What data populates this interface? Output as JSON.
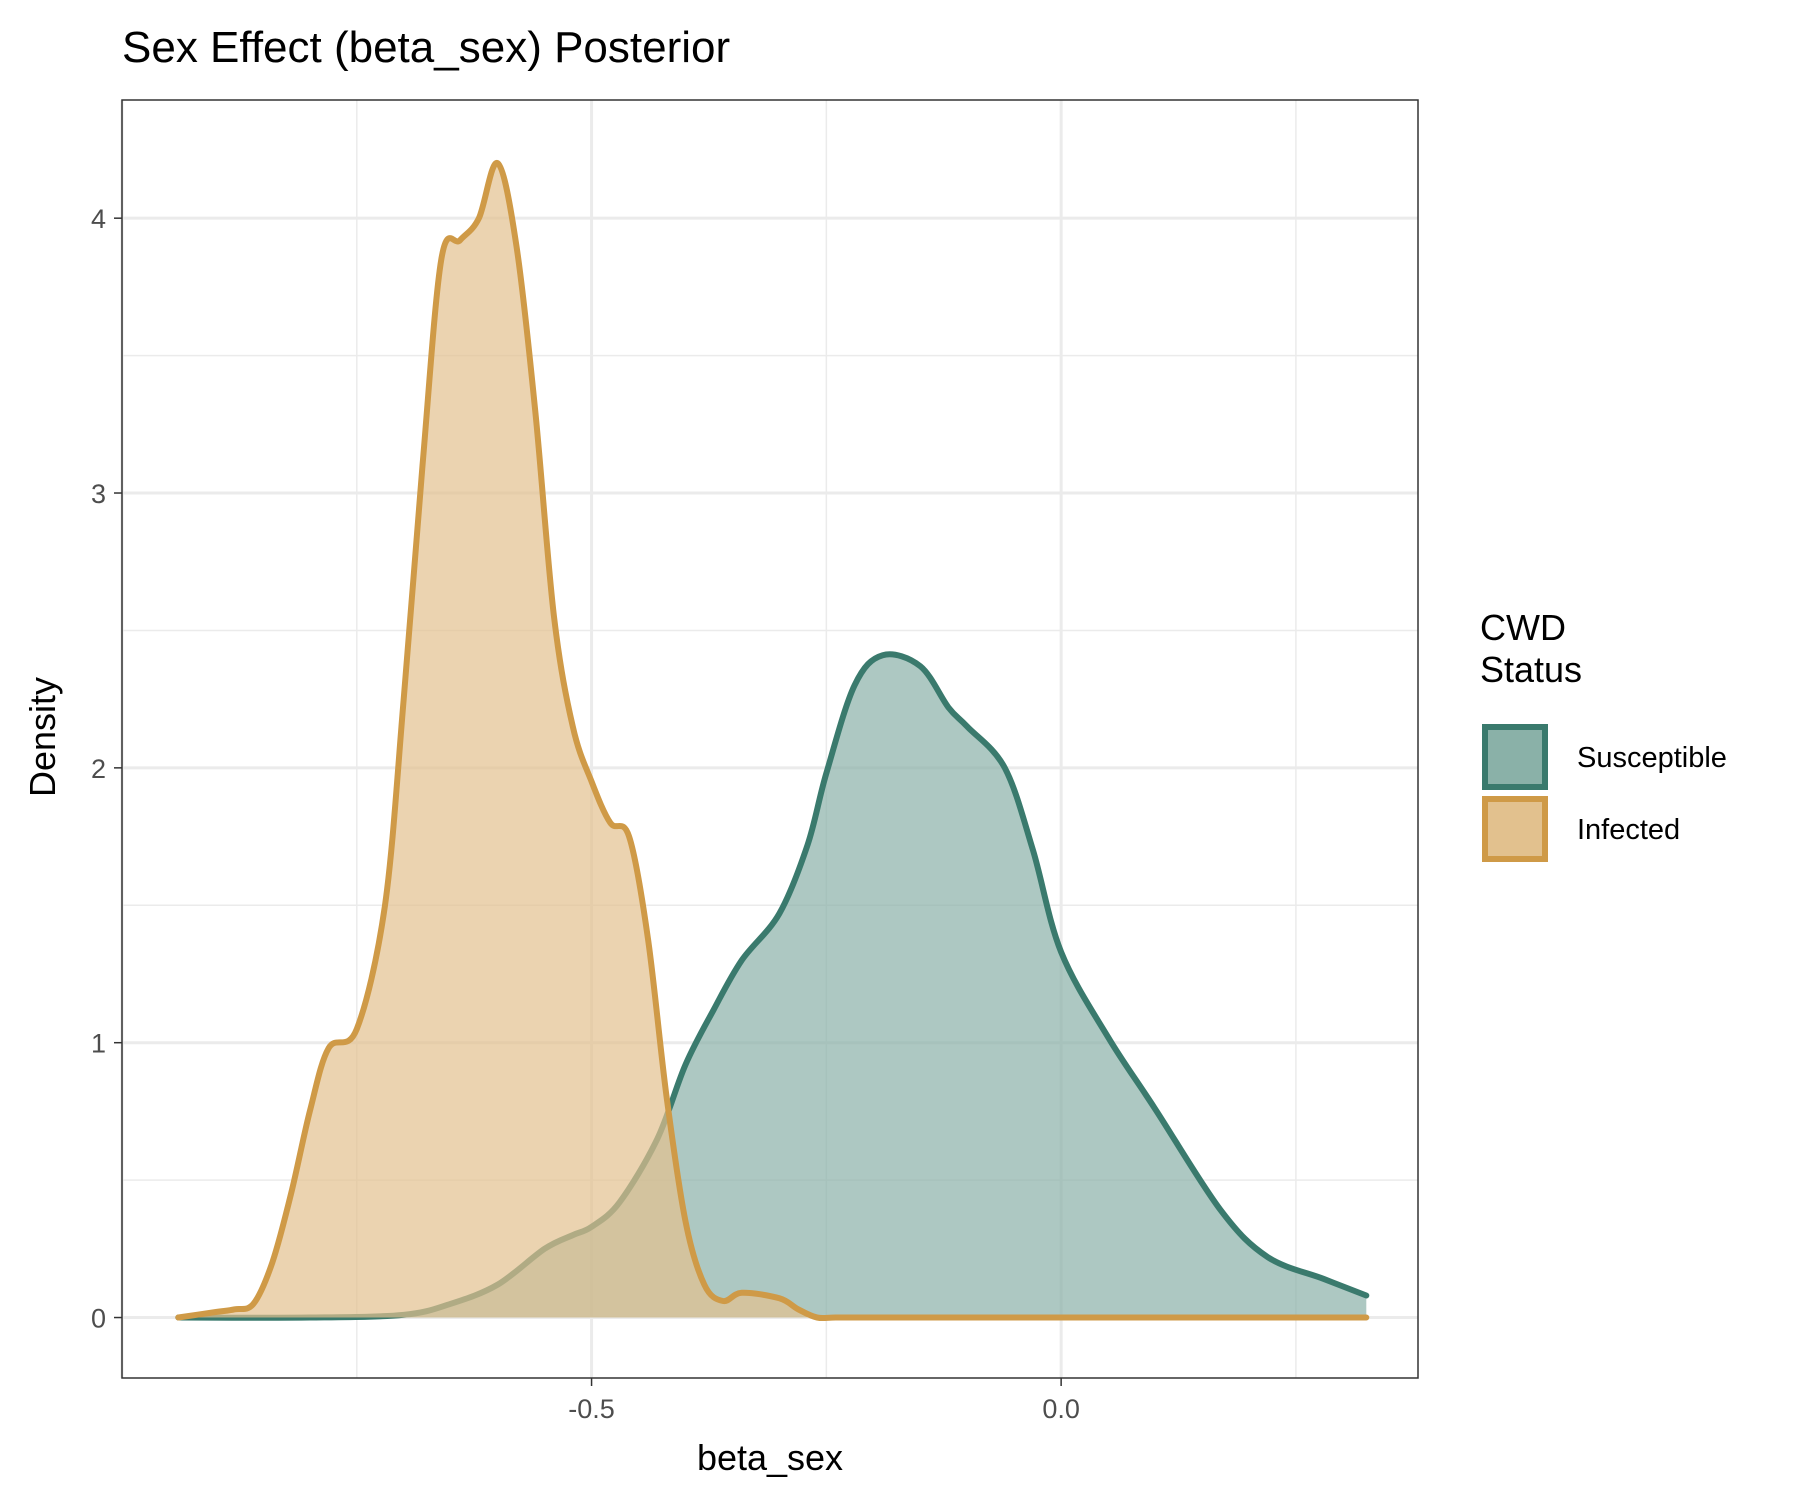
{
  "chart_data": {
    "type": "area",
    "title": "Sex Effect (beta_sex) Posterior",
    "xlabel": "beta_sex",
    "ylabel": "Density",
    "xlim": [
      -1.0,
      0.38
    ],
    "ylim": [
      -0.22,
      4.43
    ],
    "xticks": [
      -0.5,
      0.0
    ],
    "xtick_labels": [
      "-0.5",
      "0.0"
    ],
    "yticks": [
      0,
      1,
      2,
      3,
      4
    ],
    "ytick_labels": [
      "0",
      "1",
      "2",
      "3",
      "4"
    ],
    "grid": true,
    "legend": {
      "title": "CWD\nStatus",
      "placement": "right",
      "entries": [
        "Susceptible",
        "Infected"
      ]
    },
    "series": [
      {
        "name": "Susceptible",
        "line_color": "#3a7a6d",
        "fill_color": "#8ab1a8",
        "x": [
          -0.94,
          -0.8,
          -0.7,
          -0.65,
          -0.6,
          -0.55,
          -0.52,
          -0.5,
          -0.47,
          -0.43,
          -0.4,
          -0.37,
          -0.34,
          -0.3,
          -0.27,
          -0.25,
          -0.22,
          -0.19,
          -0.15,
          -0.12,
          -0.1,
          -0.06,
          -0.03,
          0.0,
          0.05,
          0.1,
          0.17,
          0.22,
          0.28,
          0.325
        ],
        "y": [
          0.0,
          0.0,
          0.01,
          0.05,
          0.12,
          0.25,
          0.3,
          0.33,
          0.42,
          0.65,
          0.92,
          1.12,
          1.3,
          1.47,
          1.72,
          1.98,
          2.3,
          2.41,
          2.37,
          2.22,
          2.15,
          2.0,
          1.7,
          1.33,
          1.02,
          0.76,
          0.39,
          0.22,
          0.14,
          0.08
        ]
      },
      {
        "name": "Infected",
        "line_color": "#cf9a47",
        "fill_color": "#e2c18e",
        "x": [
          -0.94,
          -0.9,
          -0.88,
          -0.86,
          -0.84,
          -0.82,
          -0.8,
          -0.78,
          -0.75,
          -0.72,
          -0.7,
          -0.68,
          -0.66,
          -0.64,
          -0.62,
          -0.6,
          -0.58,
          -0.56,
          -0.54,
          -0.52,
          -0.5,
          -0.48,
          -0.46,
          -0.44,
          -0.42,
          -0.4,
          -0.38,
          -0.36,
          -0.34,
          -0.3,
          -0.28,
          -0.26,
          -0.24,
          -0.2,
          0.0,
          0.325
        ],
        "y": [
          0.0,
          0.02,
          0.03,
          0.05,
          0.2,
          0.45,
          0.75,
          0.98,
          1.05,
          1.5,
          2.25,
          3.1,
          3.85,
          3.92,
          4.0,
          4.2,
          3.9,
          3.3,
          2.55,
          2.15,
          1.95,
          1.8,
          1.75,
          1.38,
          0.8,
          0.35,
          0.12,
          0.06,
          0.09,
          0.07,
          0.03,
          0.0,
          0.0,
          0.0,
          0.0,
          0.0
        ]
      }
    ]
  }
}
